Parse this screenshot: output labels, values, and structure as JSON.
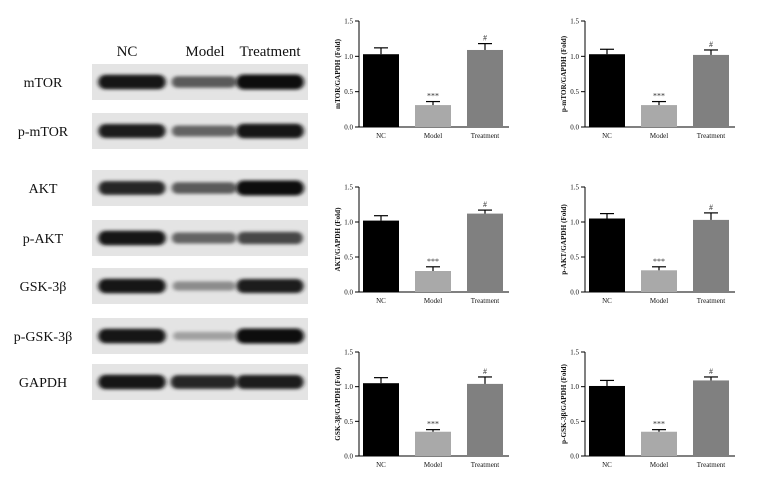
{
  "blot": {
    "lane_labels": [
      "NC",
      "Model",
      "Treatment"
    ],
    "rows": [
      {
        "protein": "mTOR",
        "intensity": [
          0.95,
          0.6,
          1.0
        ]
      },
      {
        "protein": "p-mTOR",
        "intensity": [
          0.9,
          0.55,
          0.95
        ]
      },
      {
        "protein": "AKT",
        "intensity": [
          0.85,
          0.6,
          1.0
        ]
      },
      {
        "protein": "p-AKT",
        "intensity": [
          0.95,
          0.55,
          0.7
        ]
      },
      {
        "protein": "GSK-3β",
        "intensity": [
          0.95,
          0.35,
          0.9
        ]
      },
      {
        "protein": "p-GSK-3β",
        "intensity": [
          0.95,
          0.25,
          1.0
        ]
      },
      {
        "protein": "GAPDH",
        "intensity": [
          0.95,
          0.85,
          0.9
        ]
      }
    ]
  },
  "chart_data": [
    {
      "type": "bar",
      "ylabel": "mTOR/GAPDH (Fold)",
      "categories": [
        "NC",
        "Model",
        "Treatment"
      ],
      "values": [
        1.03,
        0.31,
        1.09
      ],
      "errors": [
        0.09,
        0.05,
        0.09
      ],
      "significance": [
        "",
        "***",
        "#"
      ],
      "ylim": [
        0,
        1.5
      ],
      "yticks": [
        "0.0",
        "0.5",
        "1.0",
        "1.5"
      ],
      "colors": [
        "#000000",
        "#a9a9a9",
        "#808080"
      ]
    },
    {
      "type": "bar",
      "ylabel": "p-mTOR/GAPDH (Fold)",
      "categories": [
        "NC",
        "Model",
        "Treatment"
      ],
      "values": [
        1.03,
        0.31,
        1.02
      ],
      "errors": [
        0.07,
        0.05,
        0.07
      ],
      "significance": [
        "",
        "***",
        "#"
      ],
      "ylim": [
        0,
        1.5
      ],
      "yticks": [
        "0.0",
        "0.5",
        "1.0",
        "1.5"
      ],
      "colors": [
        "#000000",
        "#a9a9a9",
        "#808080"
      ]
    },
    {
      "type": "bar",
      "ylabel": "AKT/GAPDH (Fold)",
      "categories": [
        "NC",
        "Model",
        "Treatment"
      ],
      "values": [
        1.02,
        0.3,
        1.12
      ],
      "errors": [
        0.07,
        0.06,
        0.05
      ],
      "significance": [
        "",
        "***",
        "#"
      ],
      "ylim": [
        0,
        1.5
      ],
      "yticks": [
        "0.0",
        "0.5",
        "1.0",
        "1.5"
      ],
      "colors": [
        "#000000",
        "#a9a9a9",
        "#808080"
      ]
    },
    {
      "type": "bar",
      "ylabel": "p-AKT/GAPDH (Fold)",
      "categories": [
        "NC",
        "Model",
        "Treatment"
      ],
      "values": [
        1.05,
        0.31,
        1.03
      ],
      "errors": [
        0.07,
        0.05,
        0.1
      ],
      "significance": [
        "",
        "***",
        "#"
      ],
      "ylim": [
        0,
        1.5
      ],
      "yticks": [
        "0.0",
        "0.5",
        "1.0",
        "1.5"
      ],
      "colors": [
        "#000000",
        "#a9a9a9",
        "#808080"
      ]
    },
    {
      "type": "bar",
      "ylabel": "GSK-3β/GAPDH (Fold)",
      "categories": [
        "NC",
        "Model",
        "Treatment"
      ],
      "values": [
        1.05,
        0.35,
        1.04
      ],
      "errors": [
        0.08,
        0.03,
        0.1
      ],
      "significance": [
        "",
        "***",
        "#"
      ],
      "ylim": [
        0,
        1.5
      ],
      "yticks": [
        "0.0",
        "0.5",
        "1.0",
        "1.5"
      ],
      "colors": [
        "#000000",
        "#a9a9a9",
        "#808080"
      ]
    },
    {
      "type": "bar",
      "ylabel": "p-GSK-3β/GAPDH (Fold)",
      "categories": [
        "NC",
        "Model",
        "Treatment"
      ],
      "values": [
        1.01,
        0.35,
        1.09
      ],
      "errors": [
        0.08,
        0.03,
        0.05
      ],
      "significance": [
        "",
        "***",
        "#"
      ],
      "ylim": [
        0,
        1.5
      ],
      "yticks": [
        "0.0",
        "0.5",
        "1.0",
        "1.5"
      ],
      "colors": [
        "#000000",
        "#a9a9a9",
        "#808080"
      ]
    }
  ]
}
